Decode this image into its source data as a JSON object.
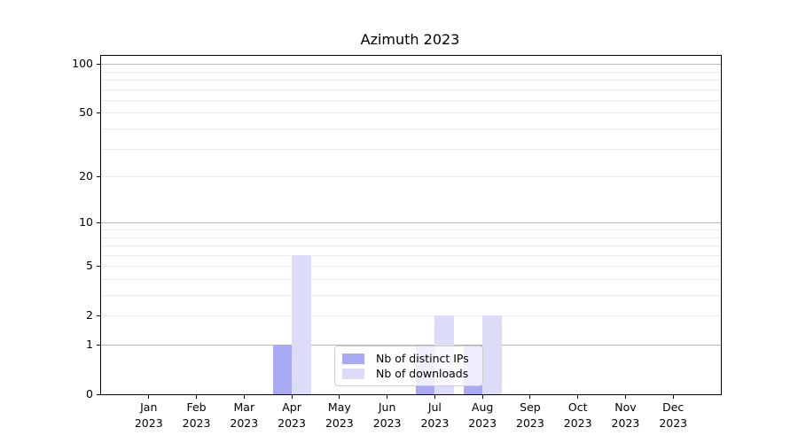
{
  "chart_data": {
    "type": "bar",
    "title": "Azimuth 2023",
    "categories": [
      "Jan 2023",
      "Feb 2023",
      "Mar 2023",
      "Apr 2023",
      "May 2023",
      "Jun 2023",
      "Jul 2023",
      "Aug 2023",
      "Sep 2023",
      "Oct 2023",
      "Nov 2023",
      "Dec 2023"
    ],
    "series": [
      {
        "name": "Nb of distinct IPs",
        "color": "#a9a9f4",
        "values": [
          0,
          0,
          0,
          1,
          0,
          0,
          1,
          1,
          0,
          0,
          0,
          0
        ]
      },
      {
        "name": "Nb of downloads",
        "color": "#dcdcf8",
        "values": [
          0,
          0,
          0,
          6,
          0,
          0,
          2,
          2,
          0,
          0,
          0,
          0
        ]
      }
    ],
    "y_axis": {
      "scale": "log1p",
      "ticks": [
        0,
        1,
        2,
        5,
        10,
        20,
        50,
        100
      ],
      "major_gridlines": [
        1,
        10,
        100
      ],
      "minor_gridlines": [
        2,
        3,
        4,
        5,
        6,
        7,
        8,
        9,
        20,
        30,
        40,
        50,
        60,
        70,
        80,
        90
      ],
      "range": [
        0,
        113
      ]
    },
    "legend": {
      "position": "lower center inside plot"
    },
    "grid": true
  },
  "colors": {
    "spine": "#000000",
    "major_grid": "#b9b9b9",
    "minor_grid": "#ebebeb",
    "legend_border": "#cccccc",
    "legend_background": "rgba(255,255,255,0.8)"
  }
}
